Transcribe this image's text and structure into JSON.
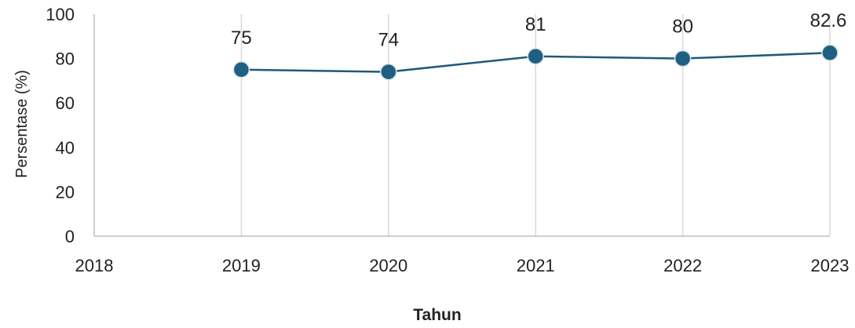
{
  "chart_data": {
    "type": "line",
    "title": "",
    "xlabel": "Tahun",
    "ylabel": "Persentase (%)",
    "x": [
      2018,
      2019,
      2020,
      2021,
      2022,
      2023
    ],
    "xlim": [
      2018,
      2023
    ],
    "ylim": [
      0,
      100
    ],
    "yticks": [
      0,
      20,
      40,
      60,
      80,
      100
    ],
    "grid": "vertical",
    "legend": "none",
    "series": [
      {
        "x": [
          2019,
          2020,
          2021,
          2022,
          2023
        ],
        "values": [
          75,
          74,
          81,
          80,
          82.6
        ],
        "labels": [
          "75",
          "74",
          "81",
          "80",
          "82.6"
        ],
        "color": "#1f5a7a",
        "marker_color": "#1f5f82"
      }
    ]
  }
}
